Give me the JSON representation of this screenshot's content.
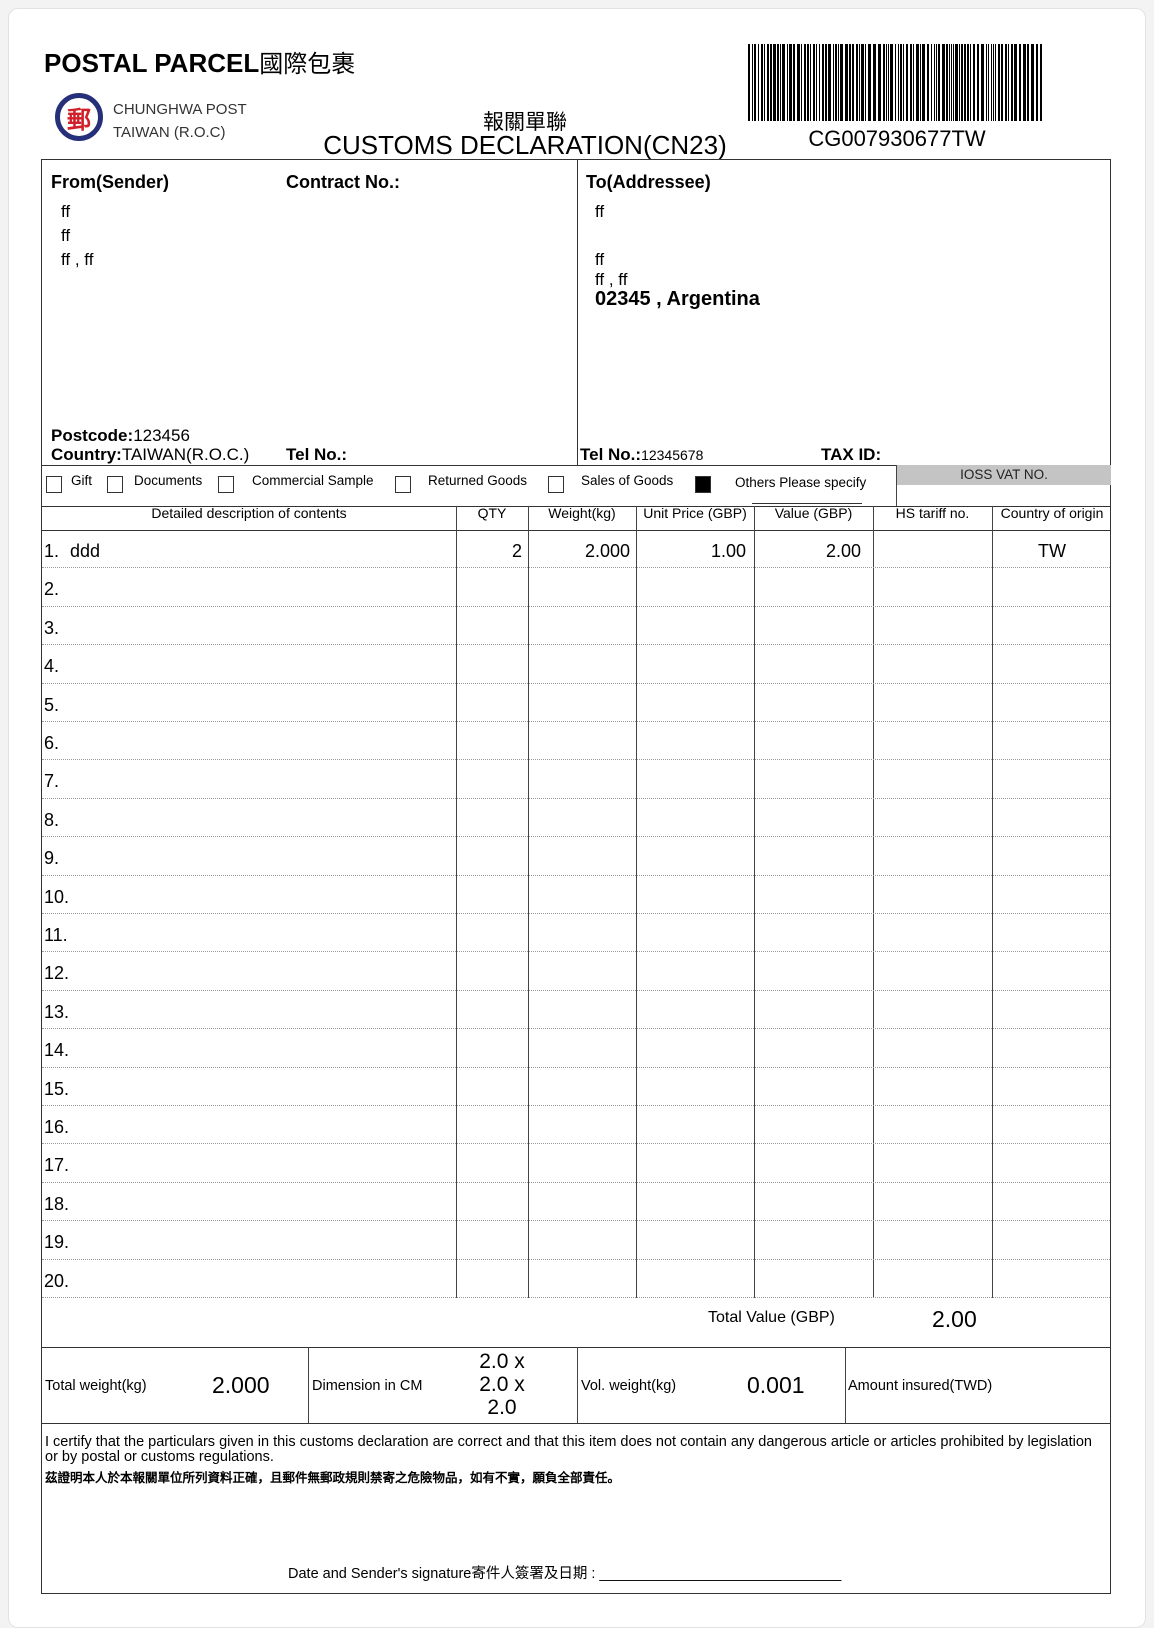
{
  "header": {
    "title": "POSTAL PARCEL",
    "title_cn": "國際包裹",
    "logo_line1": "CHUNGHWA POST",
    "logo_line2": "TAIWAN (R.O.C)",
    "logo_glyph": "郵",
    "subtitle_cn": "報關單聯",
    "subtitle": "CUSTOMS DECLARATION(CN23)",
    "tracking": "CG007930677TW"
  },
  "sender": {
    "label": "From(Sender)",
    "contract_label": "Contract No.:",
    "lines": [
      "ff",
      "ff",
      "ff , ff"
    ],
    "postcode_label": "Postcode:",
    "postcode": "123456",
    "country_label": "Country:",
    "country": "TAIWAN(R.O.C.)",
    "tel_label": "Tel No.:"
  },
  "addressee": {
    "label": "To(Addressee)",
    "lines": [
      "ff",
      "",
      "ff",
      "ff , ff"
    ],
    "city_line": "02345 , Argentina",
    "tel_label": "Tel No.:",
    "tel": "12345678",
    "tax_label": "TAX ID:"
  },
  "categories": [
    {
      "label": "Gift",
      "checked": false
    },
    {
      "label": "Documents",
      "checked": false
    },
    {
      "label": "Commercial Sample",
      "checked": false
    },
    {
      "label": "Returned Goods",
      "checked": false
    },
    {
      "label": "Sales of Goods",
      "checked": false
    },
    {
      "label": "Others Please specify",
      "checked": true
    }
  ],
  "ioss_label": "IOSS VAT NO.",
  "table": {
    "headers": [
      "Detailed description of contents",
      "QTY",
      "Weight(kg)",
      "Unit Price (GBP)",
      "Value (GBP)",
      "HS tariff no.",
      "Country of origin"
    ],
    "rows": [
      {
        "no": "1.",
        "desc": "ddd",
        "qty": "2",
        "weight": "2.000",
        "unit": "1.00",
        "value": "2.00",
        "hs": "",
        "origin": "TW"
      },
      {
        "no": "2."
      },
      {
        "no": "3."
      },
      {
        "no": "4."
      },
      {
        "no": "5."
      },
      {
        "no": "6."
      },
      {
        "no": "7."
      },
      {
        "no": "8."
      },
      {
        "no": "9."
      },
      {
        "no": "10."
      },
      {
        "no": "11."
      },
      {
        "no": "12."
      },
      {
        "no": "13."
      },
      {
        "no": "14."
      },
      {
        "no": "15."
      },
      {
        "no": "16."
      },
      {
        "no": "17."
      },
      {
        "no": "18."
      },
      {
        "no": "19."
      },
      {
        "no": "20."
      }
    ]
  },
  "totals": {
    "value_label": "Total Value (GBP)",
    "value": "2.00",
    "weight_label": "Total weight(kg)",
    "weight": "2.000",
    "dim_label": "Dimension in CM",
    "dims": [
      "2.0 x",
      "2.0 x",
      "2.0"
    ],
    "vol_label": "Vol. weight(kg)",
    "vol": "0.001",
    "insured_label": "Amount insured(TWD)"
  },
  "certify": {
    "en": "I certify that the particulars given in this customs declaration are correct and that this item does not contain any dangerous article or articles prohibited by legislation or by postal or customs regulations.",
    "cn": "茲證明本人於本報關單位所列資料正確，且郵件無郵政規則禁寄之危險物品，如有不實，願負全部責任。",
    "signature_label": "Date and Sender's signature寄件人簽署及日期 :",
    "signature_line": "______________________________"
  }
}
